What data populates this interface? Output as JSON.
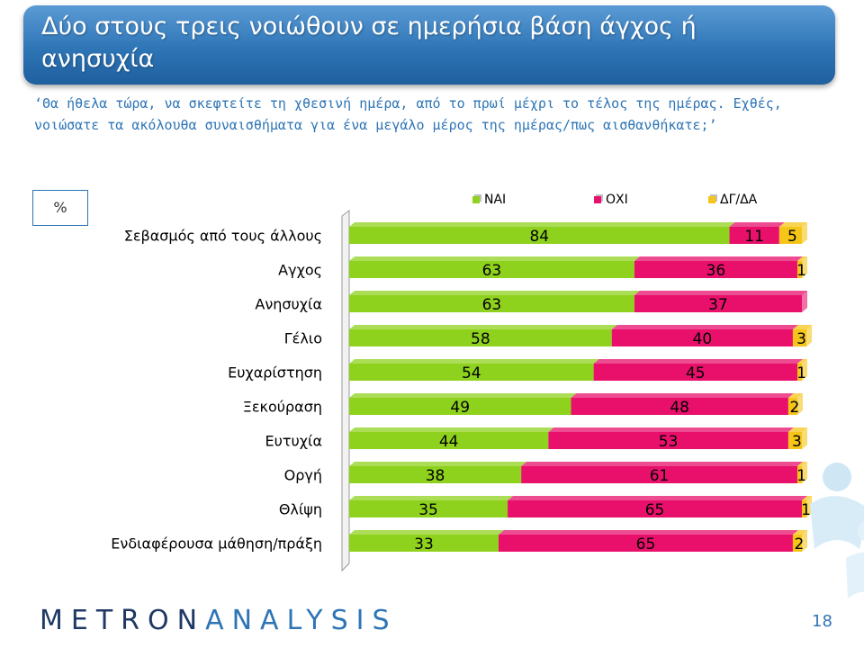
{
  "header": {
    "title": "Δύο στους τρεις νοιώθουν σε ημερήσια βάση άγχος ή ανησυχία",
    "subtitle": "‘Θα ήθελα τώρα, να σκεφτείτε τη χθεσινή ημέρα, από το πρωί μέχρι το τέλος της ημέρας. Εχθές, νοιώσατε τα ακόλουθα συναισθήματα για ένα μεγάλο μέρος της ημέρας/πως αισθανθήκατε;’"
  },
  "unit": "%",
  "colors": {
    "yes": "#8fd21e",
    "no": "#e8106b",
    "dk": "#f5c518"
  },
  "chart_data": {
    "type": "bar",
    "orientation": "horizontal",
    "stacked": true,
    "categories": [
      "Σεβασμός από τους άλλους",
      "Αγχος",
      "Ανησυχία",
      "Γέλιο",
      "Ευχαρίστηση",
      "Ξεκούραση",
      "Ευτυχία",
      "Οργή",
      "Θλίψη",
      "Ενδιαφέρουσα μάθηση/πράξη"
    ],
    "series": [
      {
        "name": "ΝΑΙ",
        "values": [
          84,
          63,
          63,
          58,
          54,
          49,
          44,
          38,
          35,
          33
        ]
      },
      {
        "name": "ΟΧΙ",
        "values": [
          11,
          36,
          37,
          40,
          45,
          48,
          53,
          61,
          65,
          65
        ]
      },
      {
        "name": "ΔΓ/ΔΑ",
        "values": [
          5,
          1,
          0,
          3,
          1,
          2,
          3,
          1,
          1,
          2
        ]
      }
    ],
    "xlim": [
      0,
      100
    ],
    "legend": "top"
  },
  "footer": {
    "brand_left": "METRON",
    "brand_right": "ANALYSIS",
    "page_number": "18"
  }
}
